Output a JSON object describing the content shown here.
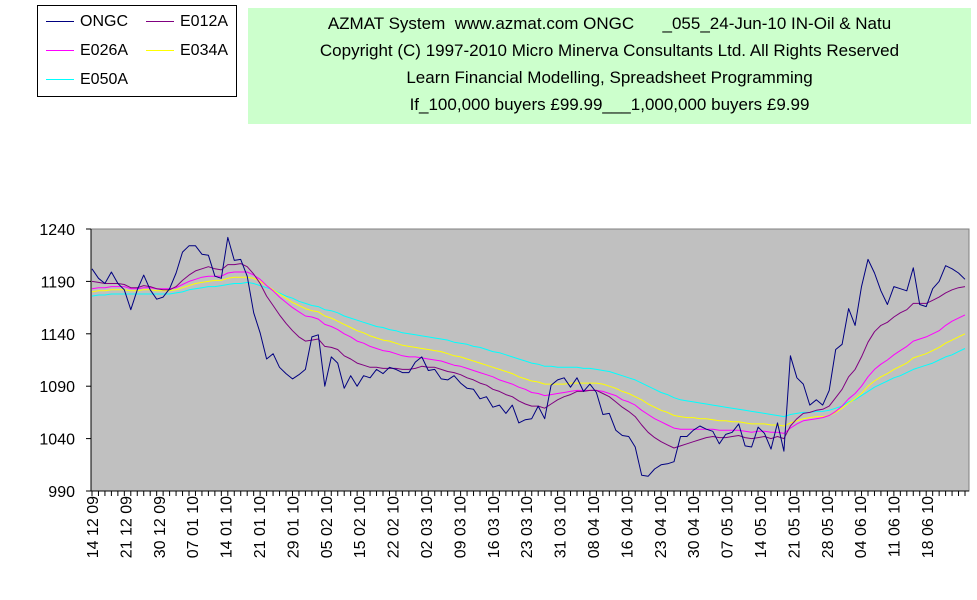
{
  "header": {
    "lines": [
      "AZMAT System  www.azmat.com ONGC      _055_24-Jun-10 IN-Oil & Natu",
      "Copyright (C) 1997-2010 Micro Minerva Consultants Ltd. All Rights Reserved",
      "Learn Financial Modelling, Spreadsheet Programming",
      "If_100,000 buyers £99.99___1,000,000 buyers £9.99"
    ]
  },
  "chart_data": {
    "type": "line",
    "title": "",
    "xlabel": "",
    "ylabel": "",
    "ylim": [
      990,
      1240
    ],
    "yticks": [
      990,
      1040,
      1090,
      1140,
      1190,
      1240
    ],
    "background": "#c0c0c0",
    "grid": false,
    "legend_position": "top-left",
    "x_tick_labels": [
      "14 12 09",
      "21 12 09",
      "30 12 09",
      "07 01 10",
      "14 01 10",
      "21 01 10",
      "29 01 10",
      "05 02 10",
      "15 02 10",
      "22 02 10",
      "02 03 10",
      "09 03 10",
      "16 03 10",
      "23 03 10",
      "31 03 10",
      "08 04 10",
      "16 04 10",
      "23 04 10",
      "30 04 10",
      "07 05 10",
      "14 05 10",
      "21 05 10",
      "28 05 10",
      "04 06 10",
      "11 06 10",
      "18 06 10"
    ],
    "series": [
      {
        "name": "ONGC",
        "color": "#000080",
        "values": [
          1202,
          1193,
          1188,
          1199,
          1188,
          1182,
          1163,
          1182,
          1196,
          1182,
          1173,
          1175,
          1183,
          1198,
          1218,
          1224,
          1224,
          1216,
          1215,
          1195,
          1193,
          1232,
          1210,
          1211,
          1195,
          1160,
          1141,
          1116,
          1121,
          1108,
          1102,
          1097,
          1101,
          1106,
          1137,
          1139,
          1090,
          1118,
          1112,
          1088,
          1100,
          1090,
          1100,
          1098,
          1106,
          1102,
          1108,
          1106,
          1103,
          1103,
          1113,
          1118,
          1105,
          1106,
          1097,
          1096,
          1100,
          1093,
          1088,
          1087,
          1078,
          1080,
          1070,
          1072,
          1064,
          1072,
          1055,
          1058,
          1059,
          1071,
          1059,
          1091,
          1096,
          1098,
          1089,
          1098,
          1085,
          1092,
          1084,
          1063,
          1064,
          1048,
          1043,
          1042,
          1032,
          1005,
          1004,
          1011,
          1015,
          1016,
          1018,
          1042,
          1042,
          1048,
          1052,
          1049,
          1047,
          1035,
          1044,
          1046,
          1054,
          1033,
          1032,
          1051,
          1045,
          1030,
          1055,
          1028,
          1119,
          1098,
          1092,
          1072,
          1077,
          1072,
          1086,
          1125,
          1130,
          1164,
          1148,
          1185,
          1211,
          1198,
          1181,
          1168,
          1185,
          1183,
          1181,
          1203,
          1168,
          1166,
          1183,
          1190,
          1205,
          1202,
          1198,
          1192
        ]
      },
      {
        "name": "E012A",
        "color": "#800080",
        "values": [
          1190,
          1189,
          1188,
          1188,
          1188,
          1187,
          1184,
          1184,
          1186,
          1185,
          1183,
          1182,
          1182,
          1185,
          1191,
          1196,
          1200,
          1202,
          1204,
          1202,
          1201,
          1206,
          1206,
          1207,
          1204,
          1197,
          1188,
          1176,
          1167,
          1158,
          1150,
          1143,
          1137,
          1133,
          1134,
          1135,
          1128,
          1127,
          1125,
          1119,
          1116,
          1112,
          1110,
          1108,
          1108,
          1107,
          1107,
          1107,
          1106,
          1106,
          1107,
          1109,
          1108,
          1108,
          1106,
          1104,
          1103,
          1101,
          1098,
          1096,
          1093,
          1091,
          1087,
          1085,
          1082,
          1080,
          1076,
          1073,
          1071,
          1071,
          1069,
          1073,
          1077,
          1080,
          1082,
          1085,
          1085,
          1086,
          1086,
          1083,
          1080,
          1075,
          1070,
          1066,
          1061,
          1053,
          1046,
          1041,
          1037,
          1034,
          1031,
          1033,
          1035,
          1037,
          1039,
          1041,
          1042,
          1041,
          1041,
          1042,
          1043,
          1041,
          1040,
          1041,
          1042,
          1040,
          1042,
          1040,
          1052,
          1059,
          1064,
          1065,
          1067,
          1068,
          1071,
          1079,
          1087,
          1099,
          1106,
          1118,
          1132,
          1142,
          1148,
          1151,
          1156,
          1160,
          1163,
          1169,
          1169,
          1169,
          1172,
          1175,
          1179,
          1182,
          1184,
          1185
        ]
      },
      {
        "name": "E026A",
        "color": "#ff00ff",
        "values": [
          1183,
          1184,
          1184,
          1185,
          1185,
          1185,
          1183,
          1183,
          1184,
          1184,
          1183,
          1183,
          1183,
          1184,
          1187,
          1190,
          1192,
          1194,
          1195,
          1195,
          1195,
          1198,
          1199,
          1199,
          1199,
          1196,
          1192,
          1186,
          1181,
          1175,
          1170,
          1165,
          1161,
          1157,
          1156,
          1154,
          1149,
          1147,
          1144,
          1140,
          1137,
          1133,
          1131,
          1128,
          1126,
          1124,
          1123,
          1121,
          1119,
          1118,
          1118,
          1117,
          1116,
          1115,
          1114,
          1112,
          1110,
          1109,
          1107,
          1105,
          1103,
          1101,
          1099,
          1096,
          1094,
          1092,
          1089,
          1087,
          1084,
          1083,
          1081,
          1082,
          1083,
          1084,
          1085,
          1086,
          1086,
          1086,
          1086,
          1085,
          1083,
          1081,
          1077,
          1075,
          1072,
          1067,
          1063,
          1059,
          1056,
          1053,
          1050,
          1049,
          1049,
          1049,
          1049,
          1049,
          1049,
          1048,
          1048,
          1048,
          1048,
          1047,
          1046,
          1047,
          1047,
          1046,
          1046,
          1045,
          1050,
          1054,
          1057,
          1058,
          1059,
          1060,
          1062,
          1066,
          1071,
          1078,
          1083,
          1090,
          1099,
          1106,
          1111,
          1115,
          1120,
          1124,
          1128,
          1133,
          1135,
          1137,
          1140,
          1143,
          1148,
          1152,
          1155,
          1158
        ]
      },
      {
        "name": "E034A",
        "color": "#ffff00",
        "values": [
          1180,
          1181,
          1181,
          1182,
          1182,
          1182,
          1181,
          1181,
          1182,
          1182,
          1181,
          1181,
          1181,
          1182,
          1184,
          1186,
          1188,
          1189,
          1190,
          1191,
          1191,
          1193,
          1194,
          1194,
          1194,
          1193,
          1190,
          1186,
          1182,
          1178,
          1174,
          1170,
          1167,
          1164,
          1162,
          1161,
          1157,
          1155,
          1152,
          1149,
          1146,
          1143,
          1141,
          1138,
          1136,
          1134,
          1133,
          1131,
          1129,
          1128,
          1127,
          1126,
          1125,
          1124,
          1123,
          1121,
          1119,
          1118,
          1116,
          1114,
          1112,
          1110,
          1108,
          1106,
          1104,
          1102,
          1099,
          1097,
          1095,
          1094,
          1092,
          1092,
          1092,
          1092,
          1093,
          1093,
          1093,
          1093,
          1093,
          1092,
          1090,
          1088,
          1085,
          1083,
          1080,
          1077,
          1073,
          1070,
          1067,
          1065,
          1062,
          1061,
          1060,
          1060,
          1059,
          1059,
          1058,
          1057,
          1057,
          1056,
          1056,
          1055,
          1054,
          1054,
          1054,
          1053,
          1053,
          1052,
          1055,
          1057,
          1059,
          1060,
          1061,
          1061,
          1062,
          1065,
          1069,
          1074,
          1078,
          1083,
          1090,
          1095,
          1099,
          1102,
          1106,
          1109,
          1112,
          1117,
          1119,
          1121,
          1124,
          1127,
          1131,
          1134,
          1137,
          1140
        ]
      },
      {
        "name": "E050A",
        "color": "#00ffff",
        "values": [
          1176,
          1177,
          1177,
          1178,
          1178,
          1178,
          1178,
          1178,
          1178,
          1178,
          1178,
          1178,
          1178,
          1179,
          1180,
          1182,
          1183,
          1184,
          1185,
          1185,
          1186,
          1187,
          1188,
          1188,
          1189,
          1188,
          1186,
          1184,
          1182,
          1179,
          1176,
          1174,
          1171,
          1169,
          1167,
          1166,
          1163,
          1162,
          1160,
          1157,
          1155,
          1153,
          1151,
          1149,
          1147,
          1146,
          1144,
          1143,
          1141,
          1140,
          1139,
          1138,
          1137,
          1136,
          1135,
          1134,
          1132,
          1131,
          1130,
          1128,
          1127,
          1125,
          1123,
          1122,
          1120,
          1118,
          1116,
          1114,
          1112,
          1111,
          1109,
          1109,
          1108,
          1108,
          1108,
          1108,
          1107,
          1107,
          1106,
          1105,
          1104,
          1102,
          1100,
          1098,
          1096,
          1093,
          1090,
          1087,
          1084,
          1082,
          1079,
          1077,
          1076,
          1075,
          1074,
          1073,
          1072,
          1071,
          1070,
          1069,
          1068,
          1067,
          1066,
          1065,
          1064,
          1063,
          1062,
          1061,
          1063,
          1064,
          1065,
          1065,
          1066,
          1066,
          1067,
          1069,
          1071,
          1075,
          1077,
          1081,
          1085,
          1089,
          1092,
          1095,
          1098,
          1100,
          1103,
          1106,
          1108,
          1110,
          1112,
          1115,
          1118,
          1120,
          1123,
          1126
        ]
      }
    ]
  }
}
